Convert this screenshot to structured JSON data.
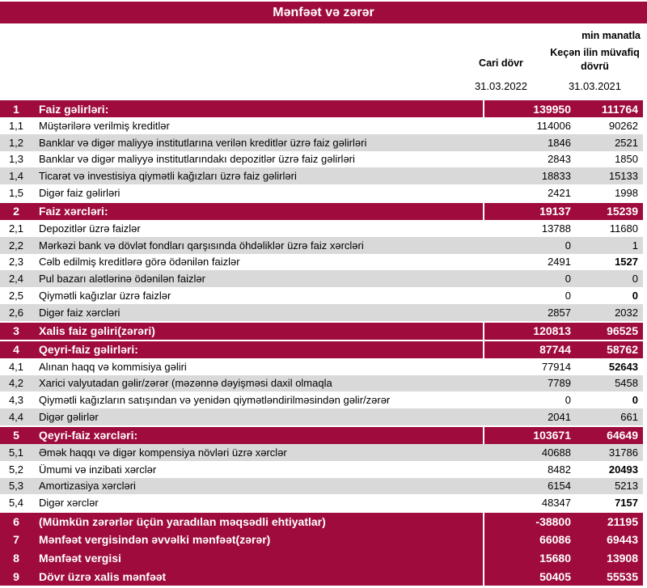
{
  "title": "Mənfəət və zərər",
  "unit_note": "min manatla",
  "columns": [
    {
      "label": "Cari dövr",
      "date": "31.03.2022"
    },
    {
      "label": "Keçən ilin müvafiq dövrü",
      "date": "31.03.2021"
    }
  ],
  "colors": {
    "accent_red": "#9E0B3C",
    "row_gray": "#D9D9D9",
    "row_white": "#FFFFFF",
    "section_text": "#FFFFFF",
    "detail_text": "#000000"
  },
  "rows": [
    {
      "num": "1",
      "label": "Faiz gəlirləri:",
      "current": "139950",
      "previous": "111764",
      "type": "section"
    },
    {
      "num": "1,1",
      "label": "Müştərilərə verilmiş kreditlər",
      "current": "114006",
      "previous": "90262",
      "type": "detail",
      "shade": "white"
    },
    {
      "num": "1,2",
      "label": "Banklar və digər maliyyə institutlarına verilən kreditlər üzrə faiz gəlirləri",
      "current": "1846",
      "previous": "2521",
      "type": "detail",
      "shade": "gray"
    },
    {
      "num": "1,3",
      "label": "Banklar və digər maliyyə institutlarındakı depozitlər üzrə faiz gəlirləri",
      "current": "2843",
      "previous": "1850",
      "type": "detail",
      "shade": "white"
    },
    {
      "num": "1,4",
      "label": "Ticarət və investisiya qiymətli kağızları üzrə faiz gəlirləri",
      "current": "18833",
      "previous": "15133",
      "type": "detail",
      "shade": "gray"
    },
    {
      "num": "1,5",
      "label": "Digər faiz gəlirləri",
      "current": "2421",
      "previous": "1998",
      "type": "detail",
      "shade": "white"
    },
    {
      "num": "2",
      "label": "Faiz xərcləri:",
      "current": "19137",
      "previous": "15239",
      "type": "section"
    },
    {
      "num": "2,1",
      "label": "Depozitlər üzrə faizlər",
      "current": "13788",
      "previous": "11680",
      "type": "detail",
      "shade": "white"
    },
    {
      "num": "2,2",
      "label": "Mərkəzi bank və dövlət fondları qarşısında öhdəliklər üzrə faiz xərcləri",
      "current": "0",
      "previous": "1",
      "type": "detail",
      "shade": "gray"
    },
    {
      "num": "2,3",
      "label": "Cəlb edilmiş kreditlərə görə ödənilən faizlər",
      "current": "2491",
      "previous": "1527",
      "previous_bold": true,
      "type": "detail",
      "shade": "white"
    },
    {
      "num": "2,4",
      "label": "Pul bazarı alətlərinə ödənilən faizlər",
      "current": "0",
      "previous": "0",
      "type": "detail",
      "shade": "gray"
    },
    {
      "num": "2,5",
      "label": "Qiymətli kağızlar üzrə faizlər",
      "current": "0",
      "previous": "0",
      "previous_bold": true,
      "type": "detail",
      "shade": "white"
    },
    {
      "num": "2,6",
      "label": "Digər faiz xərcləri",
      "current": "2857",
      "previous": "2032",
      "type": "detail",
      "shade": "gray"
    },
    {
      "num": "3",
      "label": "Xalis faiz gəliri(zərəri)",
      "current": "120813",
      "previous": "96525",
      "type": "section"
    },
    {
      "num": "4",
      "label": "Qeyri-faiz gəlirləri:",
      "current": "87744",
      "previous": "58762",
      "type": "section"
    },
    {
      "num": "4,1",
      "label": "Alınan haqq və kommisiya gəliri",
      "current": "77914",
      "previous": "52643",
      "previous_bold": true,
      "type": "detail",
      "shade": "white"
    },
    {
      "num": "4,2",
      "label": "Xarici valyutadan gəlir/zərər (məzənnə dəyişməsi daxil olmaqla",
      "current": "7789",
      "previous": "5458",
      "type": "detail",
      "shade": "gray"
    },
    {
      "num": "4,3",
      "label": "Qiymətli kağızların satışından və yenidən qiymətləndirilməsindən gəlir/zərər",
      "current": "0",
      "previous": "0",
      "previous_bold": true,
      "type": "detail",
      "shade": "white"
    },
    {
      "num": "4,4",
      "label": "Digər gəlirlər",
      "current": "2041",
      "previous": "661",
      "type": "detail",
      "shade": "gray"
    },
    {
      "num": "5",
      "label": "Qeyri-faiz xərcləri:",
      "current": "103671",
      "previous": "64649",
      "type": "section"
    },
    {
      "num": "5,1",
      "label": "Əmək haqqı və digər kompensiya növləri üzrə xərclər",
      "current": "40688",
      "previous": "31786",
      "type": "detail",
      "shade": "gray"
    },
    {
      "num": "5,2",
      "label": "Ümumi və inzibati xərclər",
      "current": "8482",
      "previous": "20493",
      "previous_bold": true,
      "type": "detail",
      "shade": "white"
    },
    {
      "num": "5,3",
      "label": "Amortizasiya xərcləri",
      "current": "6154",
      "previous": "5213",
      "type": "detail",
      "shade": "gray"
    },
    {
      "num": "5,4",
      "label": "Digər xərclər",
      "current": "48347",
      "previous": "7157",
      "previous_bold": true,
      "type": "detail",
      "shade": "white"
    },
    {
      "num": "6",
      "label": "(Mümkün zərərlər üçün yaradılan məqsədli ehtiyatlar)",
      "current": "-38800",
      "previous": "21195",
      "type": "section"
    },
    {
      "num": "7",
      "label": "Mənfəət vergisindən əvvəlki mənfəət(zərər)",
      "current": "66086",
      "previous": "69443",
      "type": "section",
      "sep": false
    },
    {
      "num": "8",
      "label": "Mənfəət vergisi",
      "current": "15680",
      "previous": "13908",
      "type": "section",
      "sep": false
    },
    {
      "num": "9",
      "label": "Dövr üzrə xalis mənfəət",
      "current": "50405",
      "previous": "55535",
      "type": "section",
      "sep": false
    }
  ]
}
